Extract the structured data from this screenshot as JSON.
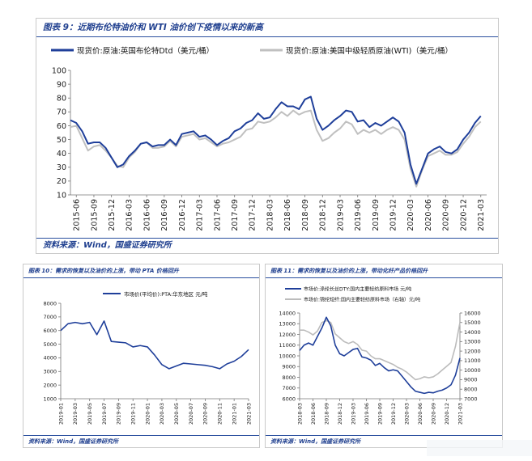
{
  "chart1": {
    "title": "图表 9：近期布伦特油价和 WTI 油价创下疫情以来的新高",
    "source": "资料来源：Wind，国盛证券研究所",
    "legend_1": "现货价:原油:英国布伦特Dtd（美元/桶）",
    "legend_2": "现货价:原油:美国中级轻质原油(WTI)（美元/桶）",
    "y_ticks": [
      "100",
      "90",
      "80",
      "70",
      "60",
      "50",
      "40",
      "30",
      "20",
      "10"
    ],
    "x_ticks": [
      "2015-06",
      "2015-09",
      "2015-12",
      "2016-03",
      "2016-06",
      "2016-09",
      "2016-12",
      "2017-03",
      "2017-06",
      "2017-09",
      "2017-12",
      "2018-03",
      "2018-06",
      "2018-09",
      "2018-12",
      "2019-03",
      "2019-06",
      "2019-09",
      "2019-12",
      "2020-03",
      "2020-06",
      "2020-09",
      "2020-12",
      "2021-03"
    ]
  },
  "chart2": {
    "title": "图表 10：需求的恢复以及油价的上涨，带动 PTA 价格回升",
    "source": "资料来源：Wind，国盛证券研究所",
    "legend_1": "市场价(平均价):PTA:华东地区 元/吨",
    "y_ticks": [
      "8000",
      "7000",
      "6000",
      "5000",
      "4000",
      "3000",
      "2000",
      "1000"
    ],
    "x_ticks": [
      "2019-01",
      "2019-03",
      "2019-05",
      "2019-07",
      "2019-09",
      "2019-11",
      "2020-01",
      "2020-03",
      "2020-05",
      "2020-07",
      "2020-09",
      "2020-11",
      "2021-01",
      "2021-03"
    ]
  },
  "chart3": {
    "title": "图表 11：需求的恢复以及油价的上涨，带动化纤产品价格回升",
    "source": "资料来源：Wind，国盛证券研究所",
    "legend_1": "市场价:涤纶长丝DTY:国内主要轻纺原料市场 元/吨",
    "legend_2": "市场价:锦纶短纤:国内主要轻纺原料市场（右轴）元/吨",
    "y_left_ticks": [
      "14000",
      "13000",
      "12000",
      "11000",
      "10000",
      "9000",
      "8000",
      "7000",
      "6000"
    ],
    "y_right_ticks": [
      "16000",
      "15000",
      "14000",
      "13000",
      "12000",
      "11000",
      "10000",
      "9000",
      "8000",
      "7000"
    ],
    "x_ticks": [
      "2018-03",
      "2018-06",
      "2018-09",
      "2018-12",
      "2019-03",
      "2019-06",
      "2019-09",
      "2019-12",
      "2020-03",
      "2020-06",
      "2020-09",
      "2020-12",
      "2021-03"
    ]
  },
  "chart_data": [
    {
      "type": "line",
      "title": "图表 9：近期布伦特油价和 WTI 油价创下疫情以来的新高",
      "xlabel": "",
      "ylabel": "",
      "ylim": [
        10,
        100
      ],
      "legend_position": "top",
      "grid": false,
      "x_ticks": [
        "2015-06",
        "2015-09",
        "2015-12",
        "2016-03",
        "2016-06",
        "2016-09",
        "2016-12",
        "2017-03",
        "2017-06",
        "2017-09",
        "2017-12",
        "2018-03",
        "2018-06",
        "2018-09",
        "2018-12",
        "2019-03",
        "2019-06",
        "2019-09",
        "2019-12",
        "2020-03",
        "2020-06",
        "2020-09",
        "2020-12",
        "2021-03"
      ],
      "series": [
        {
          "name": "现货价:原油:英国布伦特Dtd（美元/桶）",
          "color": "#1f3f9a",
          "x": [
            "2015-05",
            "2015-06",
            "2015-07",
            "2015-08",
            "2015-09",
            "2015-10",
            "2015-11",
            "2015-12",
            "2016-01",
            "2016-02",
            "2016-03",
            "2016-04",
            "2016-05",
            "2016-06",
            "2016-07",
            "2016-08",
            "2016-09",
            "2016-10",
            "2016-11",
            "2016-12",
            "2017-01",
            "2017-02",
            "2017-03",
            "2017-04",
            "2017-05",
            "2017-06",
            "2017-07",
            "2017-08",
            "2017-09",
            "2017-10",
            "2017-11",
            "2017-12",
            "2018-01",
            "2018-02",
            "2018-03",
            "2018-04",
            "2018-05",
            "2018-06",
            "2018-07",
            "2018-08",
            "2018-09",
            "2018-10",
            "2018-11",
            "2018-12",
            "2019-01",
            "2019-02",
            "2019-03",
            "2019-04",
            "2019-05",
            "2019-06",
            "2019-07",
            "2019-08",
            "2019-09",
            "2019-10",
            "2019-11",
            "2019-12",
            "2020-01",
            "2020-02",
            "2020-03",
            "2020-04",
            "2020-05",
            "2020-06",
            "2020-07",
            "2020-08",
            "2020-09",
            "2020-10",
            "2020-11",
            "2020-12",
            "2021-01",
            "2021-02",
            "2021-03"
          ],
          "values": [
            64,
            62,
            56,
            47,
            48,
            48,
            44,
            37,
            30,
            32,
            38,
            42,
            47,
            48,
            45,
            46,
            46,
            50,
            46,
            54,
            55,
            56,
            52,
            53,
            50,
            46,
            49,
            51,
            56,
            58,
            62,
            64,
            69,
            65,
            66,
            72,
            77,
            74,
            74,
            72,
            79,
            81,
            65,
            57,
            60,
            64,
            67,
            71,
            70,
            63,
            64,
            59,
            62,
            60,
            63,
            66,
            63,
            55,
            32,
            18,
            29,
            40,
            43,
            45,
            41,
            40,
            43,
            50,
            55,
            62,
            67
          ]
        },
        {
          "name": "现货价:原油:美国中级轻质原油(WTI)（美元/桶）",
          "color": "#c0c0c0",
          "x": [
            "2015-05",
            "2015-06",
            "2015-07",
            "2015-08",
            "2015-09",
            "2015-10",
            "2015-11",
            "2015-12",
            "2016-01",
            "2016-02",
            "2016-03",
            "2016-04",
            "2016-05",
            "2016-06",
            "2016-07",
            "2016-08",
            "2016-09",
            "2016-10",
            "2016-11",
            "2016-12",
            "2017-01",
            "2017-02",
            "2017-03",
            "2017-04",
            "2017-05",
            "2017-06",
            "2017-07",
            "2017-08",
            "2017-09",
            "2017-10",
            "2017-11",
            "2017-12",
            "2018-01",
            "2018-02",
            "2018-03",
            "2018-04",
            "2018-05",
            "2018-06",
            "2018-07",
            "2018-08",
            "2018-09",
            "2018-10",
            "2018-11",
            "2018-12",
            "2019-01",
            "2019-02",
            "2019-03",
            "2019-04",
            "2019-05",
            "2019-06",
            "2019-07",
            "2019-08",
            "2019-09",
            "2019-10",
            "2019-11",
            "2019-12",
            "2020-01",
            "2020-02",
            "2020-03",
            "2020-04",
            "2020-05",
            "2020-06",
            "2020-07",
            "2020-08",
            "2020-09",
            "2020-10",
            "2020-11",
            "2020-12",
            "2021-01",
            "2021-02",
            "2021-03"
          ],
          "values": [
            59,
            60,
            51,
            42,
            45,
            46,
            42,
            37,
            31,
            30,
            37,
            41,
            47,
            48,
            44,
            44,
            45,
            49,
            45,
            52,
            53,
            54,
            50,
            51,
            48,
            45,
            47,
            48,
            50,
            52,
            57,
            58,
            63,
            62,
            63,
            66,
            70,
            67,
            71,
            68,
            70,
            71,
            57,
            49,
            51,
            55,
            58,
            63,
            61,
            54,
            57,
            55,
            57,
            54,
            57,
            59,
            57,
            50,
            29,
            16,
            28,
            38,
            40,
            42,
            39,
            39,
            41,
            47,
            52,
            59,
            63
          ]
        }
      ]
    },
    {
      "type": "line",
      "title": "图表 10：需求的恢复以及油价的上涨，带动 PTA 价格回升",
      "xlabel": "",
      "ylabel": "",
      "ylim": [
        1000,
        8000
      ],
      "legend_position": "top",
      "grid": false,
      "x_ticks": [
        "2019-01",
        "2019-03",
        "2019-05",
        "2019-07",
        "2019-09",
        "2019-11",
        "2020-01",
        "2020-03",
        "2020-05",
        "2020-07",
        "2020-09",
        "2020-11",
        "2021-01",
        "2021-03"
      ],
      "series": [
        {
          "name": "市场价(平均价):PTA:华东地区 元/吨",
          "color": "#1f3f9a",
          "x": [
            "2019-01",
            "2019-02",
            "2019-03",
            "2019-04",
            "2019-05",
            "2019-06",
            "2019-07",
            "2019-08",
            "2019-09",
            "2019-10",
            "2019-11",
            "2019-12",
            "2020-01",
            "2020-02",
            "2020-03",
            "2020-04",
            "2020-05",
            "2020-06",
            "2020-07",
            "2020-08",
            "2020-09",
            "2020-10",
            "2020-11",
            "2020-12",
            "2021-01",
            "2021-02",
            "2021-03"
          ],
          "values": [
            6000,
            6500,
            6600,
            6500,
            6600,
            5700,
            6700,
            5200,
            5150,
            5100,
            4800,
            4900,
            4800,
            4200,
            3500,
            3200,
            3400,
            3600,
            3550,
            3500,
            3450,
            3350,
            3200,
            3550,
            3750,
            4100,
            4600
          ]
        }
      ]
    },
    {
      "type": "line",
      "title": "图表 11：需求的恢复以及油价的上涨，带动化纤产品价格回升",
      "xlabel": "",
      "ylabel": "",
      "ylim": [
        6000,
        14000
      ],
      "y2lim": [
        7000,
        16000
      ],
      "legend_position": "top",
      "grid": false,
      "x_ticks": [
        "2018-03",
        "2018-06",
        "2018-09",
        "2018-12",
        "2019-03",
        "2019-06",
        "2019-09",
        "2019-12",
        "2020-03",
        "2020-06",
        "2020-09",
        "2020-12",
        "2021-03"
      ],
      "series": [
        {
          "name": "市场价:涤纶长丝DTY:国内主要轻纺原料市场 元/吨",
          "color": "#1f3f9a",
          "axis": "left",
          "x": [
            "2018-03",
            "2018-04",
            "2018-05",
            "2018-06",
            "2018-07",
            "2018-08",
            "2018-09",
            "2018-10",
            "2018-11",
            "2018-12",
            "2019-01",
            "2019-02",
            "2019-03",
            "2019-04",
            "2019-05",
            "2019-06",
            "2019-07",
            "2019-08",
            "2019-09",
            "2019-10",
            "2019-11",
            "2019-12",
            "2020-01",
            "2020-02",
            "2020-03",
            "2020-04",
            "2020-05",
            "2020-06",
            "2020-07",
            "2020-08",
            "2020-09",
            "2020-10",
            "2020-11",
            "2020-12",
            "2021-01",
            "2021-02",
            "2021-03"
          ],
          "values": [
            10500,
            11000,
            11200,
            11000,
            11800,
            12600,
            13600,
            12800,
            11000,
            10200,
            10000,
            10300,
            10600,
            10700,
            9900,
            9800,
            9600,
            9100,
            9300,
            8900,
            8600,
            8700,
            8600,
            8100,
            7600,
            7100,
            6700,
            6600,
            6500,
            6600,
            6550,
            6700,
            6800,
            7000,
            7300,
            8200,
            9800
          ]
        },
        {
          "name": "市场价:锦纶短纤:国内主要轻纺原料市场（右轴）元/吨",
          "color": "#bcbcbc",
          "axis": "right",
          "x": [
            "2018-03",
            "2018-04",
            "2018-05",
            "2018-06",
            "2018-07",
            "2018-08",
            "2018-09",
            "2018-10",
            "2018-11",
            "2018-12",
            "2019-01",
            "2019-02",
            "2019-03",
            "2019-04",
            "2019-05",
            "2019-06",
            "2019-07",
            "2019-08",
            "2019-09",
            "2019-10",
            "2019-11",
            "2019-12",
            "2020-01",
            "2020-02",
            "2020-03",
            "2020-04",
            "2020-05",
            "2020-06",
            "2020-07",
            "2020-08",
            "2020-09",
            "2020-10",
            "2020-11",
            "2020-12",
            "2021-01",
            "2021-02",
            "2021-03"
          ],
          "values": [
            14200,
            14200,
            14000,
            13700,
            14100,
            15000,
            15200,
            15000,
            13800,
            13400,
            13000,
            12800,
            13000,
            12700,
            12100,
            12000,
            11500,
            11200,
            11200,
            11000,
            10800,
            10600,
            10300,
            10100,
            9800,
            9400,
            9000,
            9100,
            9300,
            9200,
            9300,
            9600,
            10000,
            10400,
            10800,
            12500,
            15000
          ]
        }
      ]
    }
  ]
}
